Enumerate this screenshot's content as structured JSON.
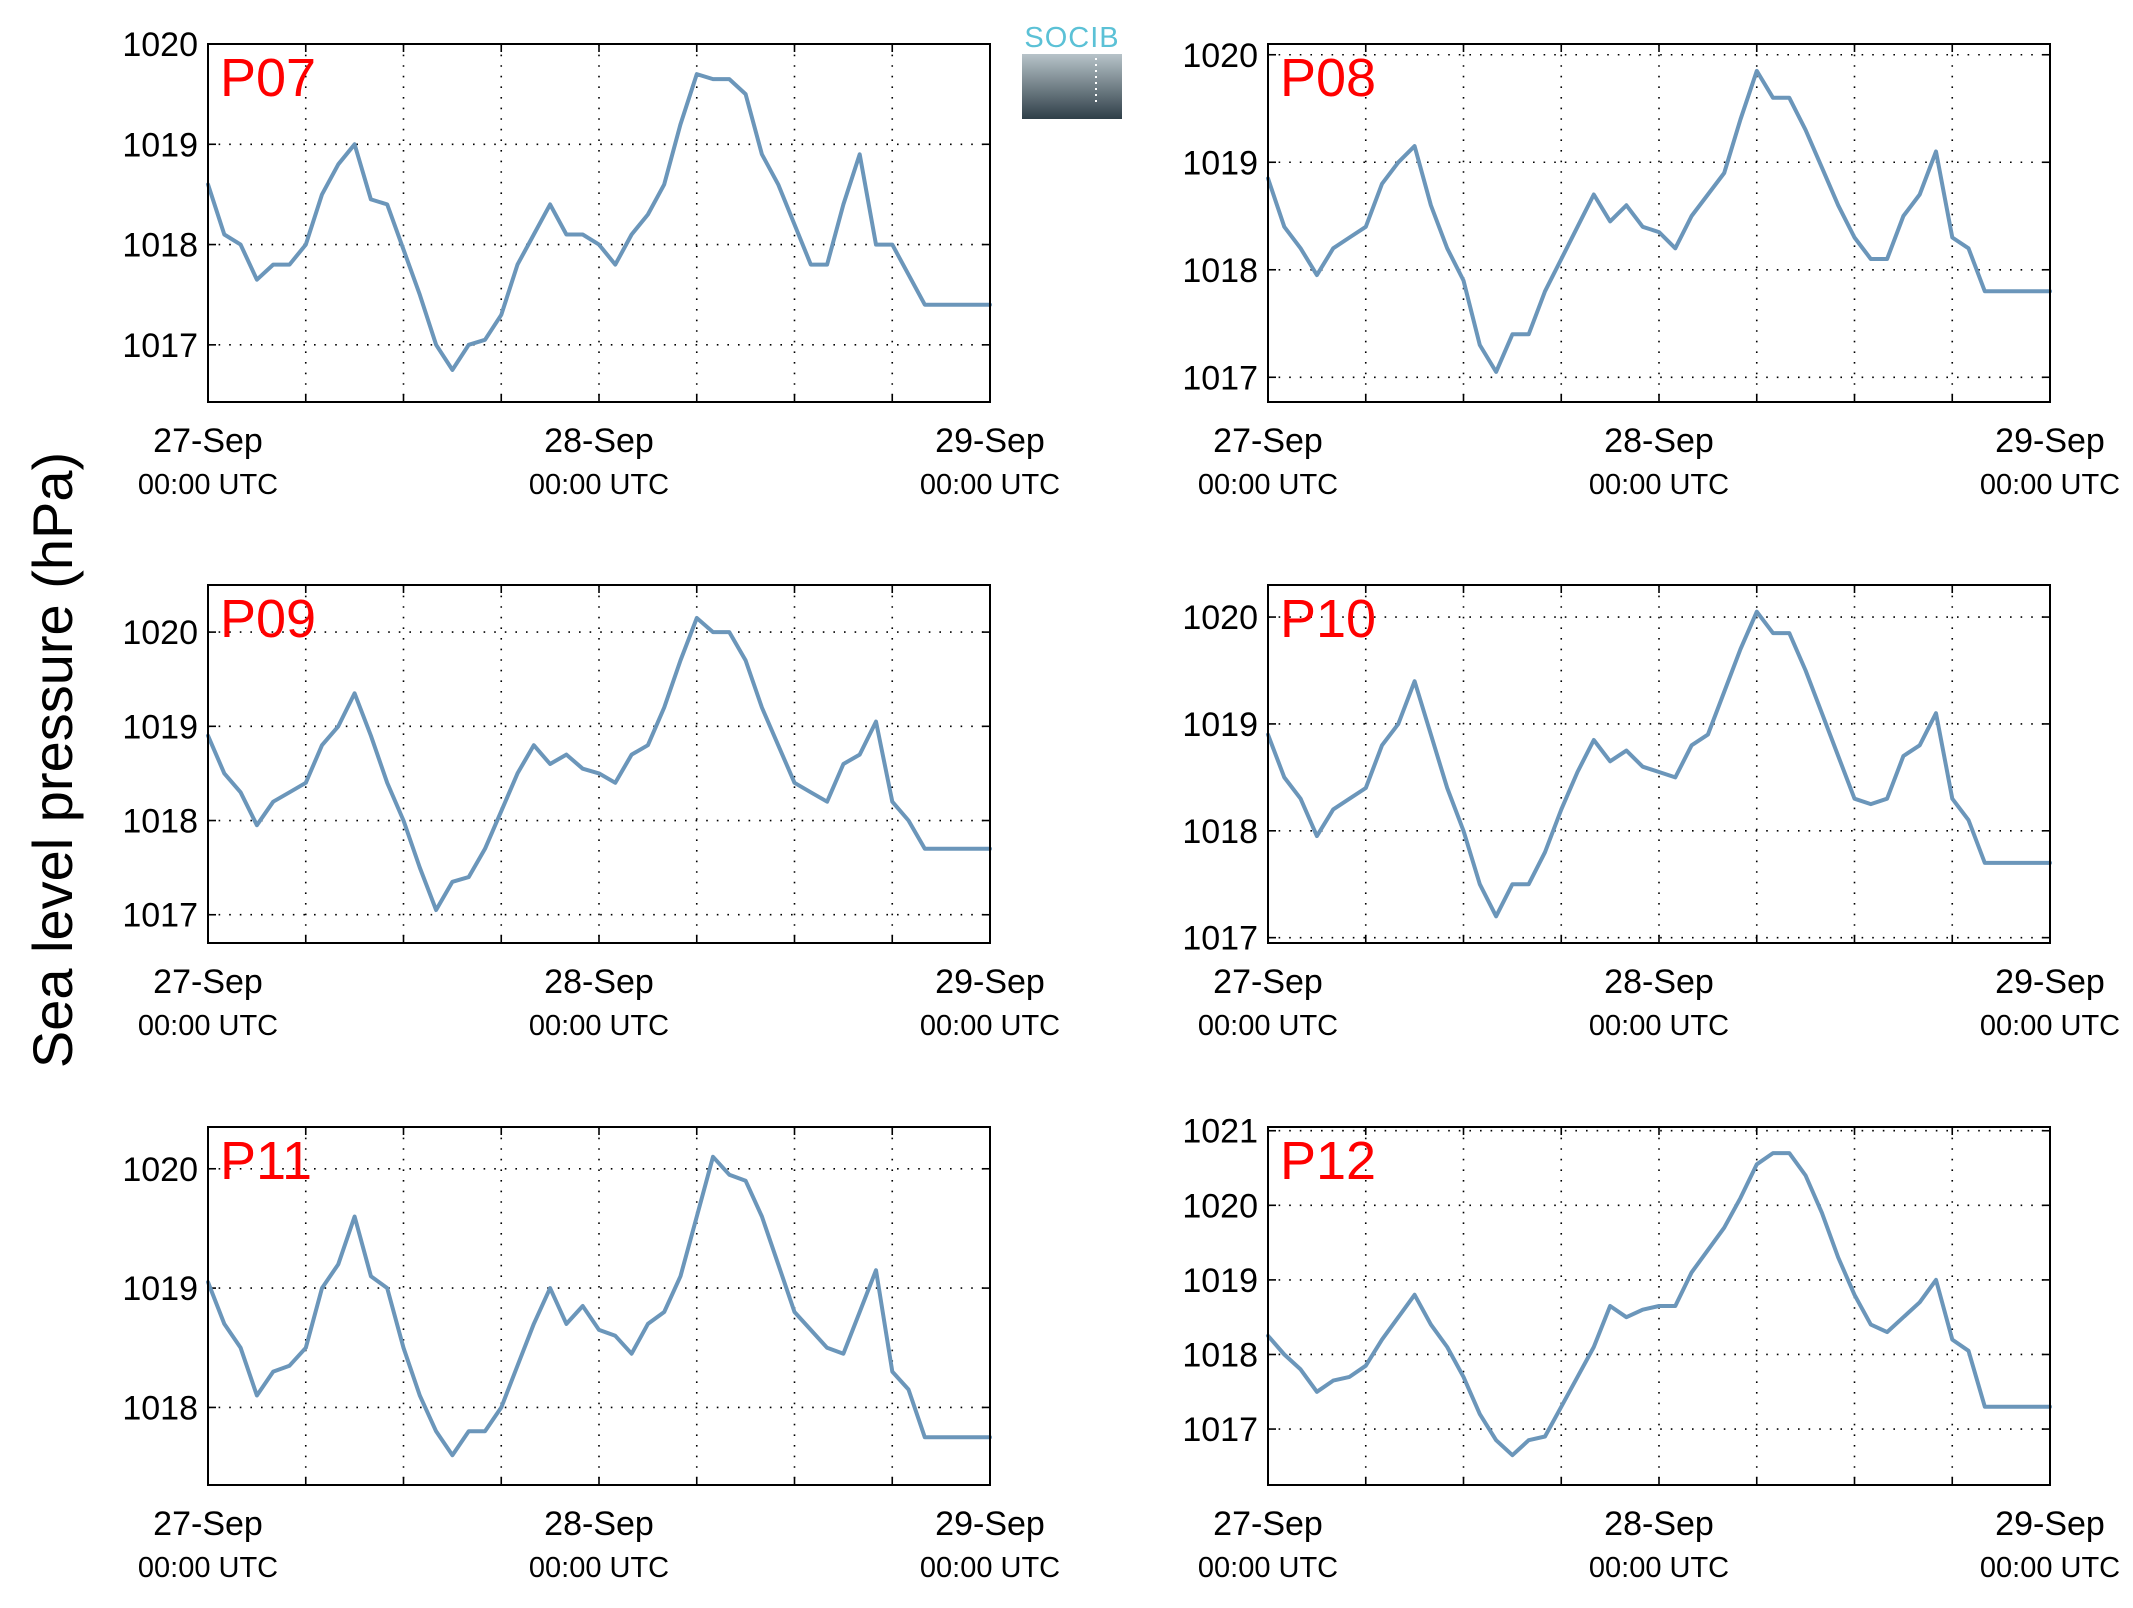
{
  "figure": {
    "ylabel": "Sea level pressure (hPa)",
    "logo_text": "SOCIB",
    "colors": {
      "line": "#6b96ba",
      "panel_label": "#ff0000",
      "logo_text": "#5bc1d6"
    }
  },
  "chart_data": [
    {
      "type": "line",
      "title": "P07",
      "xlabel": "",
      "ylabel": "Sea level pressure (hPa)",
      "x_ticks": [
        {
          "date": "27-Sep",
          "time": "00:00 UTC"
        },
        {
          "date": "28-Sep",
          "time": "00:00 UTC"
        },
        {
          "date": "29-Sep",
          "time": "00:00 UTC"
        }
      ],
      "xlim_hours": [
        0,
        48
      ],
      "grid": true,
      "ylim": [
        1016.43,
        1020.0
      ],
      "yticks": [
        1017,
        1018,
        1019,
        1020
      ],
      "series": [
        {
          "x": [
            0,
            1,
            2,
            3,
            4,
            5,
            6,
            7,
            8,
            9,
            10,
            11,
            12,
            13,
            14,
            15,
            16,
            17,
            18,
            19,
            20,
            21,
            22,
            23,
            24,
            25,
            26,
            27,
            28,
            29,
            30,
            31,
            32,
            33,
            34,
            35,
            36,
            37,
            38,
            39,
            40,
            41,
            42,
            43,
            44,
            45,
            46,
            47,
            48
          ],
          "values": [
            1018.6,
            1018.1,
            1018.0,
            1017.65,
            1017.8,
            1017.8,
            1018.0,
            1018.5,
            1018.8,
            1019.0,
            1018.45,
            1018.4,
            1017.95,
            1017.5,
            1017.0,
            1016.75,
            1017.0,
            1017.05,
            1017.3,
            1017.8,
            1018.1,
            1018.4,
            1018.1,
            1018.1,
            1018.0,
            1017.8,
            1018.1,
            1018.3,
            1018.6,
            1019.2,
            1019.7,
            1019.65,
            1019.65,
            1019.5,
            1018.9,
            1018.6,
            1018.2,
            1017.8,
            1017.8,
            1018.4,
            1018.9,
            1018.0,
            1018.0,
            1017.7,
            1017.4,
            1017.4,
            1017.4,
            1017.4,
            1017.4
          ]
        }
      ]
    },
    {
      "type": "line",
      "title": "P08",
      "xlabel": "",
      "ylabel": "Sea level pressure (hPa)",
      "x_ticks": [
        {
          "date": "27-Sep",
          "time": "00:00 UTC"
        },
        {
          "date": "28-Sep",
          "time": "00:00 UTC"
        },
        {
          "date": "29-Sep",
          "time": "00:00 UTC"
        }
      ],
      "xlim_hours": [
        0,
        48
      ],
      "grid": true,
      "ylim": [
        1016.77,
        1020.1
      ],
      "yticks": [
        1017,
        1018,
        1019,
        1020
      ],
      "series": [
        {
          "x": [
            0,
            1,
            2,
            3,
            4,
            5,
            6,
            7,
            8,
            9,
            10,
            11,
            12,
            13,
            14,
            15,
            16,
            17,
            18,
            19,
            20,
            21,
            22,
            23,
            24,
            25,
            26,
            27,
            28,
            29,
            30,
            31,
            32,
            33,
            34,
            35,
            36,
            37,
            38,
            39,
            40,
            41,
            42,
            43,
            44,
            45,
            46,
            47,
            48
          ],
          "values": [
            1018.85,
            1018.4,
            1018.2,
            1017.95,
            1018.2,
            1018.3,
            1018.4,
            1018.8,
            1019.0,
            1019.15,
            1018.6,
            1018.2,
            1017.9,
            1017.3,
            1017.05,
            1017.4,
            1017.4,
            1017.8,
            1018.1,
            1018.4,
            1018.7,
            1018.45,
            1018.6,
            1018.4,
            1018.35,
            1018.2,
            1018.5,
            1018.7,
            1018.9,
            1019.4,
            1019.85,
            1019.6,
            1019.6,
            1019.3,
            1018.95,
            1018.6,
            1018.3,
            1018.1,
            1018.1,
            1018.5,
            1018.7,
            1019.1,
            1018.3,
            1018.2,
            1017.8,
            1017.8,
            1017.8,
            1017.8,
            1017.8
          ]
        }
      ]
    },
    {
      "type": "line",
      "title": "P09",
      "xlabel": "",
      "ylabel": "Sea level pressure (hPa)",
      "x_ticks": [
        {
          "date": "27-Sep",
          "time": "00:00 UTC"
        },
        {
          "date": "28-Sep",
          "time": "00:00 UTC"
        },
        {
          "date": "29-Sep",
          "time": "00:00 UTC"
        }
      ],
      "xlim_hours": [
        0,
        48
      ],
      "grid": true,
      "ylim": [
        1016.7,
        1020.5
      ],
      "yticks": [
        1017,
        1018,
        1019,
        1020
      ],
      "series": [
        {
          "x": [
            0,
            1,
            2,
            3,
            4,
            5,
            6,
            7,
            8,
            9,
            10,
            11,
            12,
            13,
            14,
            15,
            16,
            17,
            18,
            19,
            20,
            21,
            22,
            23,
            24,
            25,
            26,
            27,
            28,
            29,
            30,
            31,
            32,
            33,
            34,
            35,
            36,
            37,
            38,
            39,
            40,
            41,
            42,
            43,
            44,
            45,
            46,
            47,
            48
          ],
          "values": [
            1018.9,
            1018.5,
            1018.3,
            1017.95,
            1018.2,
            1018.3,
            1018.4,
            1018.8,
            1019.0,
            1019.35,
            1018.9,
            1018.4,
            1018.0,
            1017.5,
            1017.05,
            1017.35,
            1017.4,
            1017.7,
            1018.1,
            1018.5,
            1018.8,
            1018.6,
            1018.7,
            1018.55,
            1018.5,
            1018.4,
            1018.7,
            1018.8,
            1019.2,
            1019.7,
            1020.15,
            1020.0,
            1020.0,
            1019.7,
            1019.2,
            1018.8,
            1018.4,
            1018.3,
            1018.2,
            1018.6,
            1018.7,
            1019.05,
            1018.2,
            1018.0,
            1017.7,
            1017.7,
            1017.7,
            1017.7,
            1017.7
          ]
        }
      ]
    },
    {
      "type": "line",
      "title": "P10",
      "xlabel": "",
      "ylabel": "Sea level pressure (hPa)",
      "x_ticks": [
        {
          "date": "27-Sep",
          "time": "00:00 UTC"
        },
        {
          "date": "28-Sep",
          "time": "00:00 UTC"
        },
        {
          "date": "29-Sep",
          "time": "00:00 UTC"
        }
      ],
      "xlim_hours": [
        0,
        48
      ],
      "grid": true,
      "ylim": [
        1016.95,
        1020.3
      ],
      "yticks": [
        1017,
        1018,
        1019,
        1020
      ],
      "series": [
        {
          "x": [
            0,
            1,
            2,
            3,
            4,
            5,
            6,
            7,
            8,
            9,
            10,
            11,
            12,
            13,
            14,
            15,
            16,
            17,
            18,
            19,
            20,
            21,
            22,
            23,
            24,
            25,
            26,
            27,
            28,
            29,
            30,
            31,
            32,
            33,
            34,
            35,
            36,
            37,
            38,
            39,
            40,
            41,
            42,
            43,
            44,
            45,
            46,
            47,
            48
          ],
          "values": [
            1018.9,
            1018.5,
            1018.3,
            1017.95,
            1018.2,
            1018.3,
            1018.4,
            1018.8,
            1019.0,
            1019.4,
            1018.9,
            1018.4,
            1018.0,
            1017.5,
            1017.2,
            1017.5,
            1017.5,
            1017.8,
            1018.2,
            1018.55,
            1018.85,
            1018.65,
            1018.75,
            1018.6,
            1018.55,
            1018.5,
            1018.8,
            1018.9,
            1019.3,
            1019.7,
            1020.05,
            1019.85,
            1019.85,
            1019.5,
            1019.1,
            1018.7,
            1018.3,
            1018.25,
            1018.3,
            1018.7,
            1018.8,
            1019.1,
            1018.3,
            1018.1,
            1017.7,
            1017.7,
            1017.7,
            1017.7,
            1017.7
          ]
        }
      ]
    },
    {
      "type": "line",
      "title": "P11",
      "xlabel": "",
      "ylabel": "Sea level pressure (hPa)",
      "x_ticks": [
        {
          "date": "27-Sep",
          "time": "00:00 UTC"
        },
        {
          "date": "28-Sep",
          "time": "00:00 UTC"
        },
        {
          "date": "29-Sep",
          "time": "00:00 UTC"
        }
      ],
      "xlim_hours": [
        0,
        48
      ],
      "grid": true,
      "ylim": [
        1017.35,
        1020.35
      ],
      "yticks": [
        1018,
        1019,
        1020
      ],
      "series": [
        {
          "x": [
            0,
            1,
            2,
            3,
            4,
            5,
            6,
            7,
            8,
            9,
            10,
            11,
            12,
            13,
            14,
            15,
            16,
            17,
            18,
            19,
            20,
            21,
            22,
            23,
            24,
            25,
            26,
            27,
            28,
            29,
            30,
            31,
            32,
            33,
            34,
            35,
            36,
            37,
            38,
            39,
            40,
            41,
            42,
            43,
            44,
            45,
            46,
            47,
            48
          ],
          "values": [
            1019.05,
            1018.7,
            1018.5,
            1018.1,
            1018.3,
            1018.35,
            1018.5,
            1019.0,
            1019.2,
            1019.6,
            1019.1,
            1019.0,
            1018.5,
            1018.1,
            1017.8,
            1017.6,
            1017.8,
            1017.8,
            1018.0,
            1018.35,
            1018.7,
            1019.0,
            1018.7,
            1018.85,
            1018.65,
            1018.6,
            1018.45,
            1018.7,
            1018.8,
            1019.1,
            1019.6,
            1020.1,
            1019.95,
            1019.9,
            1019.6,
            1019.2,
            1018.8,
            1018.65,
            1018.5,
            1018.45,
            1018.8,
            1019.15,
            1018.3,
            1018.15,
            1017.75,
            1017.75,
            1017.75,
            1017.75,
            1017.75
          ]
        }
      ]
    },
    {
      "type": "line",
      "title": "P12",
      "xlabel": "",
      "ylabel": "Sea level pressure (hPa)",
      "x_ticks": [
        {
          "date": "27-Sep",
          "time": "00:00 UTC"
        },
        {
          "date": "28-Sep",
          "time": "00:00 UTC"
        },
        {
          "date": "29-Sep",
          "time": "00:00 UTC"
        }
      ],
      "xlim_hours": [
        0,
        48
      ],
      "grid": true,
      "ylim": [
        1016.25,
        1021.05
      ],
      "yticks": [
        1017,
        1018,
        1019,
        1020,
        1021
      ],
      "series": [
        {
          "x": [
            0,
            1,
            2,
            3,
            4,
            5,
            6,
            7,
            8,
            9,
            10,
            11,
            12,
            13,
            14,
            15,
            16,
            17,
            18,
            19,
            20,
            21,
            22,
            23,
            24,
            25,
            26,
            27,
            28,
            29,
            30,
            31,
            32,
            33,
            34,
            35,
            36,
            37,
            38,
            39,
            40,
            41,
            42,
            43,
            44,
            45,
            46,
            47,
            48
          ],
          "values": [
            1018.25,
            1018.0,
            1017.8,
            1017.5,
            1017.65,
            1017.7,
            1017.85,
            1018.2,
            1018.5,
            1018.8,
            1018.4,
            1018.1,
            1017.7,
            1017.2,
            1016.85,
            1016.65,
            1016.85,
            1016.9,
            1017.3,
            1017.7,
            1018.1,
            1018.65,
            1018.5,
            1018.6,
            1018.65,
            1018.65,
            1019.1,
            1019.4,
            1019.7,
            1020.1,
            1020.55,
            1020.7,
            1020.7,
            1020.4,
            1019.9,
            1019.3,
            1018.8,
            1018.4,
            1018.3,
            1018.5,
            1018.7,
            1019.0,
            1018.2,
            1018.05,
            1017.3,
            1017.3,
            1017.3,
            1017.3,
            1017.3
          ]
        }
      ]
    }
  ]
}
